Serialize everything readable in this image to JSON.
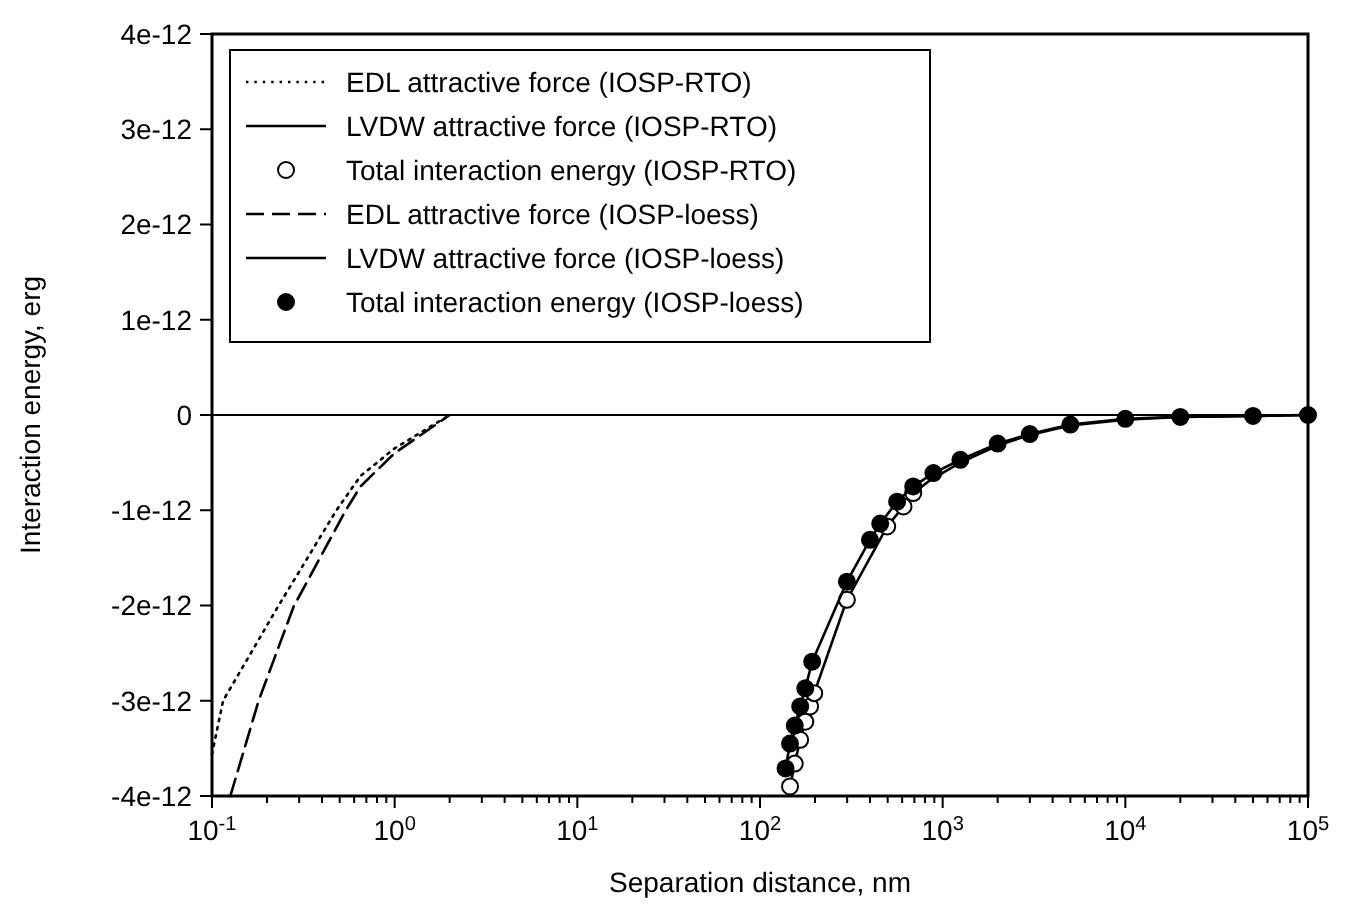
{
  "chart_data": {
    "type": "line",
    "xlabel": "Separation distance, nm",
    "ylabel": "Interaction energy, erg",
    "log": "x",
    "xlim": [
      0.1,
      100000
    ],
    "ylim": [
      -4e-12,
      4e-12
    ],
    "xticks": [
      {
        "value": 0.1,
        "label": "10$^{-1}$"
      },
      {
        "value": 0.2,
        "label": null
      },
      {
        "value": 0.3,
        "label": null
      },
      {
        "value": 0.4,
        "label": null
      },
      {
        "value": 0.5,
        "label": null
      },
      {
        "value": 0.6,
        "label": null
      },
      {
        "value": 0.7,
        "label": null
      },
      {
        "value": 0.8,
        "label": null
      },
      {
        "value": 0.9,
        "label": null
      },
      {
        "value": 1,
        "label": "10$^{0}$"
      },
      {
        "value": 2,
        "label": null
      },
      {
        "value": 3,
        "label": null
      },
      {
        "value": 4,
        "label": null
      },
      {
        "value": 5,
        "label": null
      },
      {
        "value": 6,
        "label": null
      },
      {
        "value": 7,
        "label": null
      },
      {
        "value": 8,
        "label": null
      },
      {
        "value": 9,
        "label": null
      },
      {
        "value": 10,
        "label": "10$^{1}$"
      },
      {
        "value": 20,
        "label": null
      },
      {
        "value": 30,
        "label": null
      },
      {
        "value": 40,
        "label": null
      },
      {
        "value": 50,
        "label": null
      },
      {
        "value": 60,
        "label": null
      },
      {
        "value": 70,
        "label": null
      },
      {
        "value": 80,
        "label": null
      },
      {
        "value": 90,
        "label": null
      },
      {
        "value": 100,
        "label": "10$^{2}$"
      },
      {
        "value": 200,
        "label": null
      },
      {
        "value": 300,
        "label": null
      },
      {
        "value": 400,
        "label": null
      },
      {
        "value": 500,
        "label": null
      },
      {
        "value": 600,
        "label": null
      },
      {
        "value": 700,
        "label": null
      },
      {
        "value": 800,
        "label": null
      },
      {
        "value": 900,
        "label": null
      },
      {
        "value": 1000,
        "label": "10$^{3}$"
      },
      {
        "value": 2000,
        "label": null
      },
      {
        "value": 3000,
        "label": null
      },
      {
        "value": 4000,
        "label": null
      },
      {
        "value": 5000,
        "label": null
      },
      {
        "value": 6000,
        "label": null
      },
      {
        "value": 7000,
        "label": null
      },
      {
        "value": 8000,
        "label": null
      },
      {
        "value": 9000,
        "label": null
      },
      {
        "value": 10000,
        "label": "10$^{4}$"
      },
      {
        "value": 20000,
        "label": null
      },
      {
        "value": 30000,
        "label": null
      },
      {
        "value": 40000,
        "label": null
      },
      {
        "value": 50000,
        "label": null
      },
      {
        "value": 60000,
        "label": null
      },
      {
        "value": 70000,
        "label": null
      },
      {
        "value": 80000,
        "label": null
      },
      {
        "value": 90000,
        "label": null
      },
      {
        "value": 100000,
        "label": "10$^{5}$"
      }
    ],
    "yticks": [
      {
        "value": -4e-12,
        "label": "-4e-12"
      },
      {
        "value": -3e-12,
        "label": "-3e-12"
      },
      {
        "value": -2e-12,
        "label": "-2e-12"
      },
      {
        "value": -1e-12,
        "label": "-1e-12"
      },
      {
        "value": 0,
        "label": "0"
      },
      {
        "value": 1e-12,
        "label": "1e-12"
      },
      {
        "value": 2e-12,
        "label": "2e-12"
      },
      {
        "value": 3e-12,
        "label": "3e-12"
      },
      {
        "value": 4e-12,
        "label": "4e-12"
      }
    ],
    "ref_lines": [
      {
        "axis": "y",
        "value": 0,
        "color": "#000000"
      }
    ],
    "legend": "top left",
    "grid": false,
    "series": [
      {
        "name": "EDL attractive force (IOSP-RTO)",
        "line_style": "dotted",
        "color": "#000000",
        "x": [
          0.1,
          0.115,
          0.23,
          0.48,
          0.65,
          1.0,
          2.0
        ],
        "values": [
          -3.56e-12,
          -3e-12,
          -2.01e-12,
          -1e-12,
          -6.4e-13,
          -3.5e-13,
          0
        ]
      },
      {
        "name": "LVDW attractive force (IOSP-RTO)",
        "line_style": "solid",
        "color": "#000000",
        "x": [
          146,
          155,
          166,
          177,
          188,
          198,
          299,
          497,
          610,
          690,
          860,
          1250,
          2000,
          3000,
          5000,
          10000,
          20000,
          50000,
          100000
        ],
        "values": [
          -3.9e-12,
          -3.66e-12,
          -3.41e-12,
          -3.22e-12,
          -3.06e-12,
          -2.92e-12,
          -1.94e-12,
          -1.17e-12,
          -9.6e-13,
          -8.2e-13,
          -6.8e-13,
          -5e-13,
          -3.2e-13,
          -2.1e-13,
          -1.1e-13,
          -5e-14,
          -2e-14,
          -1e-14,
          0
        ]
      },
      {
        "name": "Total interaction energy (IOSP-RTO)",
        "type": "scatter",
        "marker": "circle",
        "color": "#ffffff",
        "x": [
          146,
          155,
          166,
          177,
          188,
          198,
          299,
          497,
          610,
          690
        ],
        "values": [
          -3.9e-12,
          -3.66e-12,
          -3.41e-12,
          -3.22e-12,
          -3.06e-12,
          -2.92e-12,
          -1.94e-12,
          -1.17e-12,
          -9.6e-13,
          -8.2e-13
        ]
      },
      {
        "name": "EDL attractive force (IOSP-loess)",
        "line_style": "dashed",
        "color": "#000000",
        "x": [
          0.126,
          0.18,
          0.28,
          0.54,
          0.65,
          1.0,
          2.0
        ],
        "values": [
          -4e-12,
          -3e-12,
          -2.01e-12,
          -1e-12,
          -7.5e-13,
          -4e-13,
          0
        ]
      },
      {
        "name": "LVDW attractive force (IOSP-loess)",
        "line_style": "solid",
        "color": "#000000",
        "x": [
          138,
          146,
          155,
          166,
          177,
          193,
          299,
          400,
          455,
          563,
          690,
          890,
          1250,
          2000,
          3000,
          5000,
          10000,
          20000,
          50000,
          100000
        ],
        "values": [
          -3.71e-12,
          -3.45e-12,
          -3.26e-12,
          -3.06e-12,
          -2.87e-12,
          -2.59e-12,
          -1.75e-12,
          -1.31e-12,
          -1.14e-12,
          -9.1e-13,
          -7.5e-13,
          -6.1e-13,
          -4.7e-13,
          -3e-13,
          -2e-13,
          -1e-13,
          -4e-14,
          -2e-14,
          -1e-14,
          0
        ]
      },
      {
        "name": "Total interaction energy (IOSP-loess)",
        "type": "scatter",
        "marker": "circle",
        "color": "#000000",
        "x": [
          138,
          146,
          155,
          166,
          177,
          193,
          299,
          400,
          455,
          563,
          690,
          890,
          1250,
          2000,
          3000,
          5000,
          10000,
          20000,
          50000,
          100000
        ],
        "values": [
          -3.71e-12,
          -3.45e-12,
          -3.26e-12,
          -3.06e-12,
          -2.87e-12,
          -2.59e-12,
          -1.75e-12,
          -1.31e-12,
          -1.14e-12,
          -9.1e-13,
          -7.5e-13,
          -6.1e-13,
          -4.7e-13,
          -3e-13,
          -2e-13,
          -1e-13,
          -4e-14,
          -2e-14,
          -1e-14,
          0
        ]
      }
    ]
  }
}
